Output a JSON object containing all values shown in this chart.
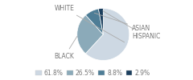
{
  "labels": [
    "WHITE",
    "BLACK",
    "ASIAN",
    "HISPANIC"
  ],
  "values": [
    61.8,
    26.5,
    8.8,
    2.9
  ],
  "colors": [
    "#cdd8e3",
    "#8baab9",
    "#4e7d96",
    "#1c3f5e"
  ],
  "legend_labels": [
    "61.8%",
    "26.5%",
    "8.8%",
    "2.9%"
  ],
  "background_color": "#ffffff",
  "text_color": "#777777",
  "fontsize": 5.5
}
